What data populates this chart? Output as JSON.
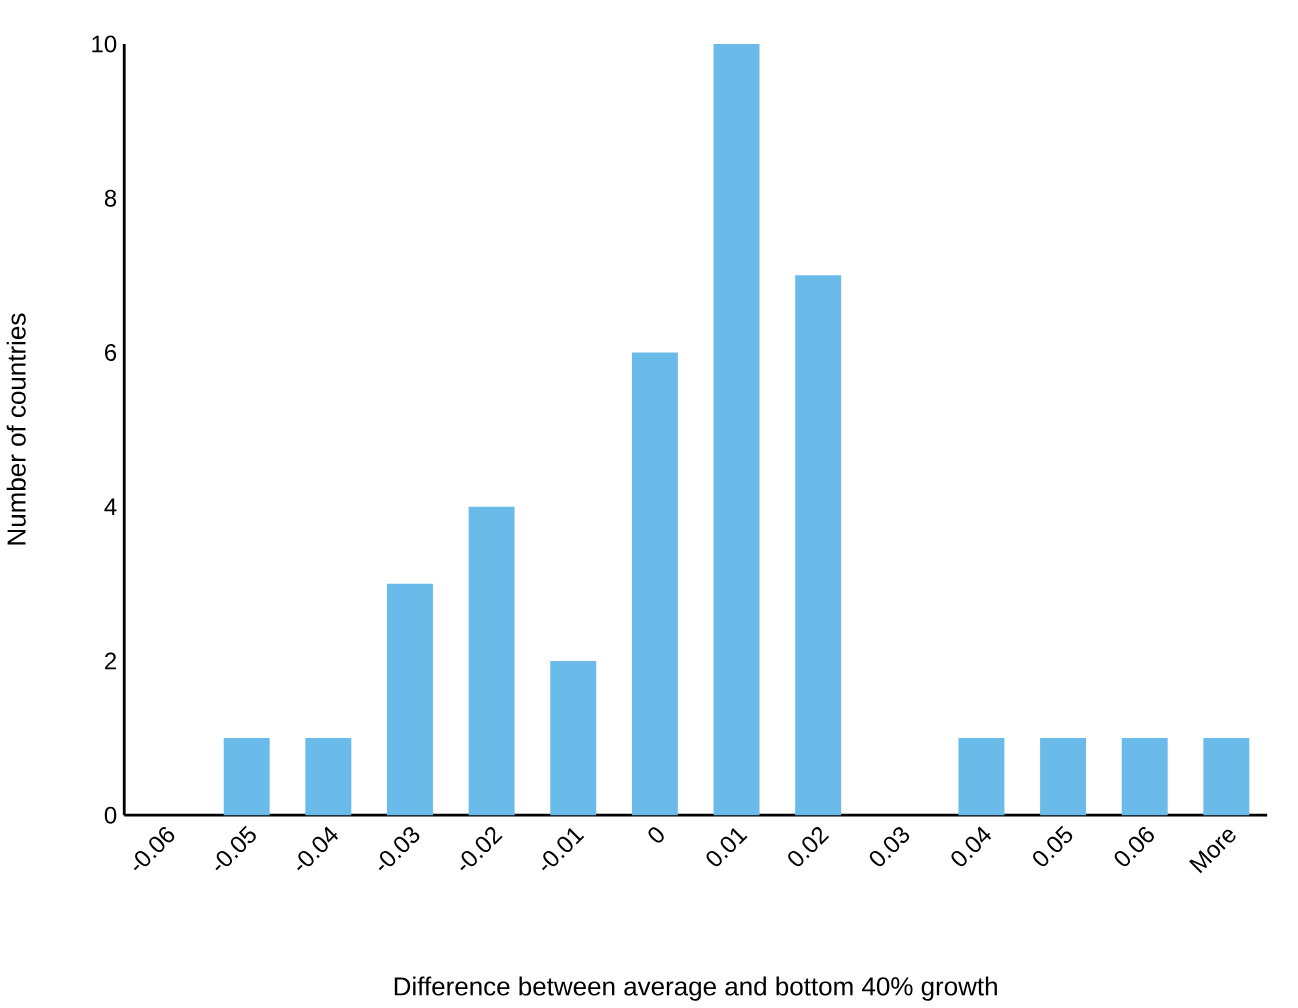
{
  "chart_data": {
    "type": "bar",
    "xlabel": "Difference between average and bottom 40% growth",
    "ylabel": "Number of countries",
    "categories": [
      "-0.06",
      "-0.05",
      "-0.04",
      "-0.03",
      "-0.02",
      "-0.01",
      "0",
      "0.01",
      "0.02",
      "0.03",
      "0.04",
      "0.05",
      "0.06",
      "More"
    ],
    "values": [
      0,
      1,
      1,
      3,
      4,
      2,
      6,
      10,
      7,
      0,
      1,
      1,
      1,
      1
    ],
    "color": "#6bbbea",
    "ylim": [
      0,
      10
    ],
    "yticks": [
      0,
      2,
      4,
      6,
      8,
      10
    ],
    "grid": false
  }
}
